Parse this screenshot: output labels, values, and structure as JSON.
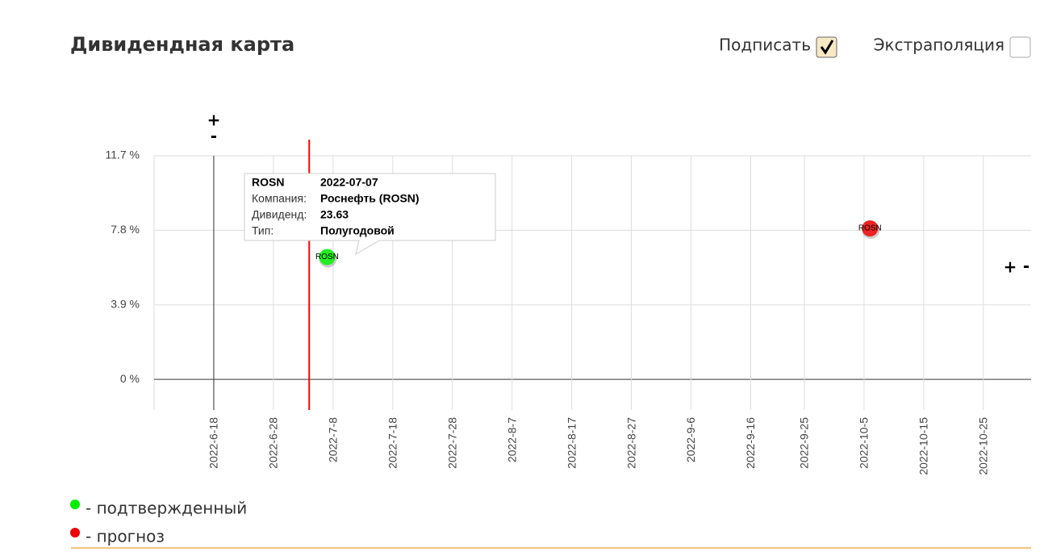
{
  "header": {
    "title": "Дивидендная карта",
    "controls": [
      {
        "label": "Подписать",
        "checked": true
      },
      {
        "label": "Экстраполяция",
        "checked": false
      }
    ]
  },
  "zoom": {
    "plus": "+",
    "minus": "-"
  },
  "chart_data": {
    "type": "scatter",
    "xlim": [
      "2022-06-08",
      "2022-11-02"
    ],
    "xticks": [
      {
        "value": "2022-06-18",
        "label": "2022-6-18"
      },
      {
        "value": "2022-06-28",
        "label": "2022-6-28"
      },
      {
        "value": "2022-07-08",
        "label": "2022-7-8"
      },
      {
        "value": "2022-07-18",
        "label": "2022-7-18"
      },
      {
        "value": "2022-07-28",
        "label": "2022-7-28"
      },
      {
        "value": "2022-08-07",
        "label": "2022-8-7"
      },
      {
        "value": "2022-08-17",
        "label": "2022-8-17"
      },
      {
        "value": "2022-08-27",
        "label": "2022-8-27"
      },
      {
        "value": "2022-09-06",
        "label": "2022-9-6"
      },
      {
        "value": "2022-09-16",
        "label": "2022-9-16"
      },
      {
        "value": "2022-09-25",
        "label": "2022-9-25"
      },
      {
        "value": "2022-10-05",
        "label": "2022-10-5"
      },
      {
        "value": "2022-10-15",
        "label": "2022-10-15"
      },
      {
        "value": "2022-10-25",
        "label": "2022-10-25"
      }
    ],
    "ylim": [
      -1.6,
      11.7
    ],
    "yticks": [
      {
        "value": 0,
        "label": "0 %"
      },
      {
        "value": 3.9,
        "label": "3.9 %"
      },
      {
        "value": 7.8,
        "label": "7.8 %"
      },
      {
        "value": 11.7,
        "label": "11.7 %"
      }
    ],
    "grid": true,
    "reference_line": {
      "x": "2022-07-04",
      "color": "#ff0000"
    },
    "series": [
      {
        "name": "- подтвержденный",
        "color": "#22ee22",
        "x": [
          "2022-07-07"
        ],
        "values": [
          6.4
        ],
        "point_labels": [
          "ROSN"
        ]
      },
      {
        "name": "- прогноз",
        "color": "#ee2222",
        "x": [
          "2022-10-06"
        ],
        "values": [
          7.9
        ],
        "point_labels": [
          "ROSN"
        ]
      }
    ],
    "tooltip": {
      "rows": [
        [
          "ROSN",
          "2022-07-07"
        ],
        [
          "Компания:",
          "Роснефть (ROSN)"
        ],
        [
          "Дивиденд:",
          "23.63"
        ],
        [
          "Тип:",
          "Полугодовой"
        ]
      ]
    }
  }
}
